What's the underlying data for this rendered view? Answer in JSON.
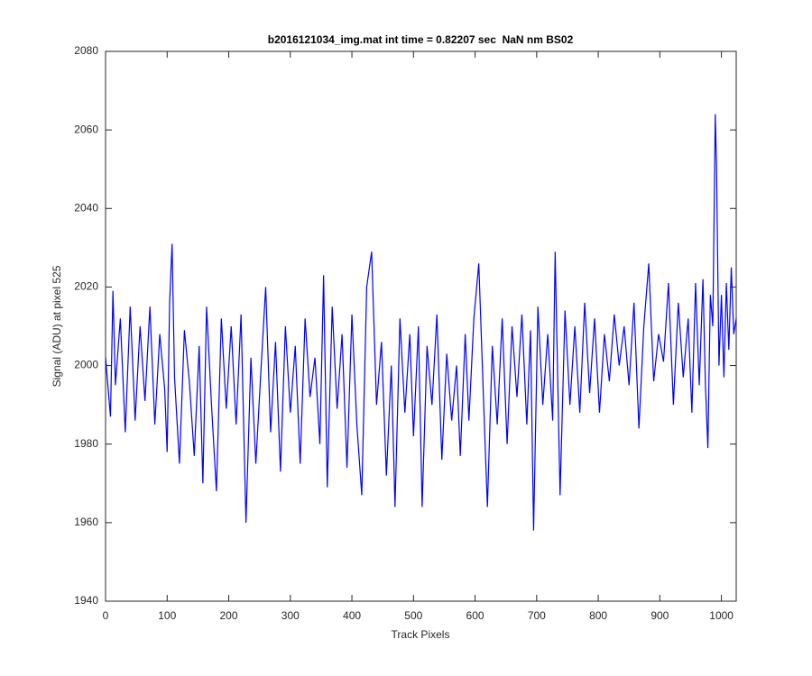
{
  "chart_data": {
    "type": "line",
    "title": "b2016121034_img.mat int time = 0.82207 sec  NaN nm BS02",
    "xlabel": "Track Pixels",
    "ylabel": "Signal (ADU) at pixel 525",
    "xlim": [
      0,
      1024
    ],
    "xticks": [
      0,
      100,
      200,
      300,
      400,
      500,
      600,
      700,
      800,
      900,
      1000
    ],
    "ylim": [
      1940,
      2080
    ],
    "yticks": [
      1940,
      1960,
      1980,
      2000,
      2020,
      2040,
      2060,
      2080
    ],
    "grid": false,
    "x": [
      0,
      8,
      12,
      16,
      24,
      32,
      40,
      48,
      56,
      64,
      72,
      80,
      88,
      96,
      100,
      104,
      108,
      112,
      120,
      128,
      136,
      144,
      152,
      158,
      164,
      172,
      180,
      188,
      196,
      204,
      212,
      220,
      228,
      236,
      244,
      252,
      260,
      268,
      276,
      284,
      292,
      300,
      308,
      316,
      324,
      332,
      340,
      348,
      354,
      360,
      368,
      376,
      384,
      392,
      400,
      408,
      416,
      424,
      432,
      440,
      448,
      456,
      464,
      470,
      478,
      486,
      494,
      500,
      508,
      514,
      522,
      530,
      538,
      546,
      554,
      562,
      570,
      576,
      584,
      590,
      598,
      606,
      614,
      620,
      628,
      636,
      644,
      652,
      660,
      668,
      676,
      684,
      690,
      695,
      702,
      710,
      718,
      726,
      730,
      738,
      746,
      754,
      762,
      770,
      778,
      786,
      794,
      802,
      810,
      818,
      826,
      834,
      842,
      850,
      858,
      866,
      874,
      882,
      890,
      898,
      906,
      914,
      922,
      930,
      938,
      946,
      952,
      958,
      964,
      970,
      974,
      978,
      982,
      986,
      990,
      992,
      996,
      1000,
      1004,
      1008,
      1012,
      1016,
      1020,
      1024
    ],
    "series": [
      {
        "name": "signal",
        "color": "#0000ff",
        "values": [
          2002,
          1987,
          2019,
          1995,
          2012,
          1983,
          2015,
          1986,
          2010,
          1991,
          2015,
          1985,
          2008,
          1994,
          1978,
          2016,
          2031,
          1997,
          1975,
          2009,
          1996,
          1977,
          2005,
          1970,
          2015,
          1990,
          1968,
          2012,
          1989,
          2010,
          1985,
          2013,
          1960,
          2002,
          1975,
          1998,
          2020,
          1983,
          2006,
          1973,
          2010,
          1988,
          2005,
          1975,
          2012,
          1992,
          2002,
          1980,
          2023,
          1969,
          2015,
          1989,
          2008,
          1974,
          2013,
          1985,
          1967,
          2020,
          2029,
          1990,
          2006,
          1972,
          2000,
          1964,
          2012,
          1988,
          2008,
          1982,
          2010,
          1964,
          2005,
          1990,
          2013,
          1976,
          2003,
          1986,
          2000,
          1977,
          2008,
          1986,
          2012,
          2026,
          1990,
          1964,
          2005,
          1985,
          2012,
          1980,
          2010,
          1992,
          2013,
          1985,
          2009,
          1958,
          2015,
          1990,
          2008,
          1986,
          2029,
          1967,
          2014,
          1990,
          2010,
          1988,
          2016,
          1993,
          2012,
          1988,
          2008,
          1996,
          2013,
          2000,
          2010,
          1995,
          2016,
          1984,
          2010,
          2026,
          1996,
          2008,
          2001,
          2021,
          1990,
          2016,
          1997,
          2012,
          1988,
          2021,
          1995,
          2022,
          1995,
          1979,
          2018,
          2010,
          2064,
          2051,
          2000,
          2018,
          1997,
          2021,
          2004,
          2025,
          2008,
          2012
        ]
      }
    ]
  }
}
